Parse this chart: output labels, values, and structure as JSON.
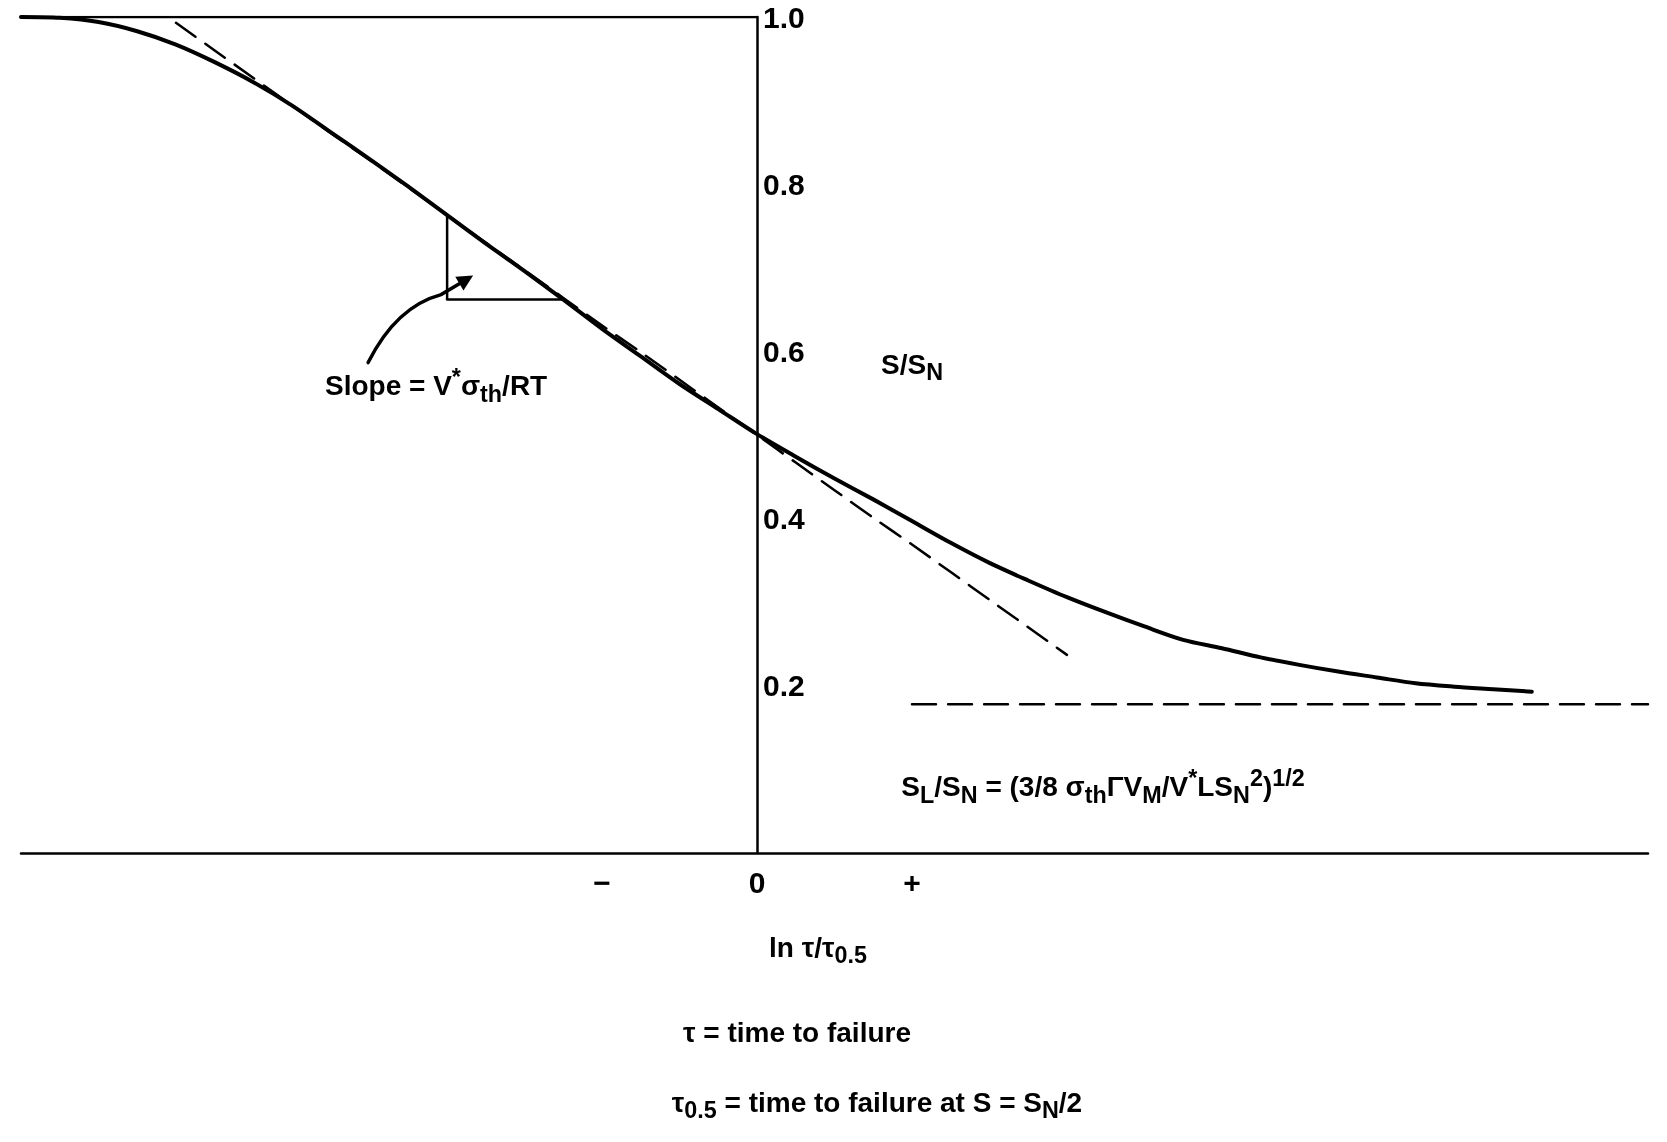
{
  "chart_data": {
    "type": "line",
    "xlabel": "ln τ/τ$_{0.5}$",
    "ylabel": "S/S$_{N}$",
    "categories": [
      null,
      null,
      null,
      null,
      null,
      null,
      null,
      null,
      null,
      null,
      null,
      null,
      null,
      null,
      null,
      "−",
      null,
      null,
      null,
      "0",
      null,
      null,
      null,
      "+",
      null,
      null,
      null,
      null,
      null,
      null,
      null,
      null,
      null,
      null,
      null,
      null,
      null,
      null,
      null,
      null,
      null,
      null,
      null
    ],
    "ylim": [
      0,
      1
    ],
    "yticks": [
      0.2,
      0.4,
      0.6,
      0.8,
      {
        "value": 1,
        "label": "1.0"
      }
    ],
    "grid": false,
    "marker": "none",
    "line_style": "solid",
    "series": [
      {
        "color": "#000000",
        "values": [
          1.0,
          0.999,
          0.994,
          0.983,
          0.967,
          0.946,
          0.922,
          0.894,
          0.862,
          0.83,
          0.797,
          0.763,
          0.729,
          0.696,
          0.662,
          0.627,
          0.594,
          0.561,
          0.531,
          0.501,
          0.474,
          0.448,
          0.423,
          0.397,
          0.371,
          0.347,
          0.326,
          0.306,
          0.288,
          0.271,
          0.255,
          0.245,
          0.234,
          0.225,
          0.217,
          0.21,
          0.203,
          0.199,
          0.196,
          0.193,
          null,
          null,
          null
        ]
      },
      {
        "type": "line",
        "color": "#000000",
        "line_style": "dashed",
        "values": [
          null,
          null,
          null,
          null,
          0.993,
          0.96,
          0.927,
          0.894,
          0.861,
          0.829,
          0.796,
          0.763,
          0.73,
          0.697,
          0.664,
          0.631,
          0.599,
          0.566,
          0.533,
          0.5,
          0.467,
          0.434,
          0.401,
          0.369,
          0.336,
          0.303,
          0.27,
          0.237,
          null,
          null,
          null,
          null,
          null,
          null,
          null,
          null,
          null,
          null,
          null,
          null,
          null,
          null,
          null
        ]
      },
      {
        "type": "line",
        "color": "#000000",
        "values": [
          1.0,
          1.0,
          1.0,
          1.0,
          1.0,
          1.0,
          1.0,
          1.0,
          1.0,
          1.0,
          1.0,
          1.0,
          1.0,
          1.0,
          1.0,
          1.0,
          1.0,
          1.0,
          1.0,
          1.0,
          null,
          null,
          null,
          null,
          null,
          null,
          null,
          null,
          null,
          null,
          null,
          null,
          null,
          null,
          null,
          null,
          null,
          null,
          null,
          null,
          null,
          null,
          null
        ]
      },
      {
        "type": "line",
        "color": "#000000",
        "values": [
          null,
          null,
          null,
          null,
          null,
          null,
          null,
          null,
          null,
          null,
          null,
          0.662,
          0.662,
          0.662,
          0.662,
          null,
          null,
          null,
          null,
          null,
          null,
          null,
          null,
          null,
          null,
          null,
          null,
          null,
          null,
          null,
          null,
          null,
          null,
          null,
          null,
          null,
          null,
          null,
          null,
          null,
          null,
          null,
          null
        ],
        "errors": [
          null,
          null,
          null,
          null,
          null,
          null,
          null,
          null,
          null,
          null,
          null,
          [
            0.662,
            0.763
          ],
          null,
          null,
          null,
          null,
          null,
          null,
          null,
          null,
          null,
          null,
          null,
          null,
          null,
          null,
          null,
          null,
          null,
          null,
          null,
          null,
          null,
          null,
          null,
          null,
          null,
          null,
          null,
          null,
          null,
          null,
          null
        ]
      },
      {
        "type": "line",
        "color": "#000000",
        "line_style": "dashed",
        "values": [
          null,
          null,
          null,
          null,
          null,
          null,
          null,
          null,
          null,
          null,
          null,
          null,
          null,
          null,
          null,
          null,
          null,
          null,
          null,
          null,
          null,
          null,
          null,
          0.178,
          0.178,
          0.178,
          0.178,
          0.178,
          0.178,
          0.178,
          0.178,
          0.178,
          0.178,
          0.178,
          0.178,
          0.178,
          0.178,
          0.178,
          0.178,
          0.178,
          0.178,
          0.178,
          0.178
        ]
      }
    ],
    "annotations": [
      "Slope = V$^{*}$σ$_{th}$/RT",
      "S$_{L}$/S$_{N}$ = (3/8 σ$_{th}$ΓV$_{M}$/V$^{*}$LS$_{N}$$^{2}$)$^{1/2}$",
      "τ = time to failure",
      "τ$_{0.5}$ = time to failure at  S = S$_{N}$/2"
    ]
  }
}
